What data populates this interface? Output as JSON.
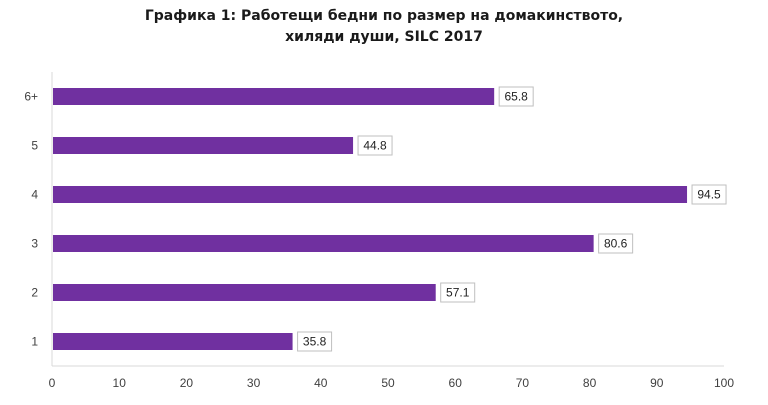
{
  "chart_data": {
    "type": "bar",
    "orientation": "horizontal",
    "title_line1": "Графика 1: Работещи бедни по размер на домакинството,",
    "title_line2": "хиляди души, SILC 2017",
    "xlabel": "",
    "ylabel": "",
    "categories": [
      "6+",
      "5",
      "4",
      "3",
      "2",
      "1"
    ],
    "values": [
      65.8,
      44.8,
      94.5,
      80.6,
      57.1,
      35.8
    ],
    "data_labels": [
      "65.8",
      "44.8",
      "94.5",
      "80.6",
      "57.1",
      "35.8"
    ],
    "xlim": [
      0,
      100
    ],
    "xticks": [
      "0",
      "10",
      "20",
      "30",
      "40",
      "50",
      "60",
      "70",
      "80",
      "90",
      "100"
    ],
    "grid": false,
    "legend": "none",
    "bar_color": "#7030a0",
    "label_border_color": "#bfbfbf",
    "axis_color": "#d9d9d9"
  }
}
